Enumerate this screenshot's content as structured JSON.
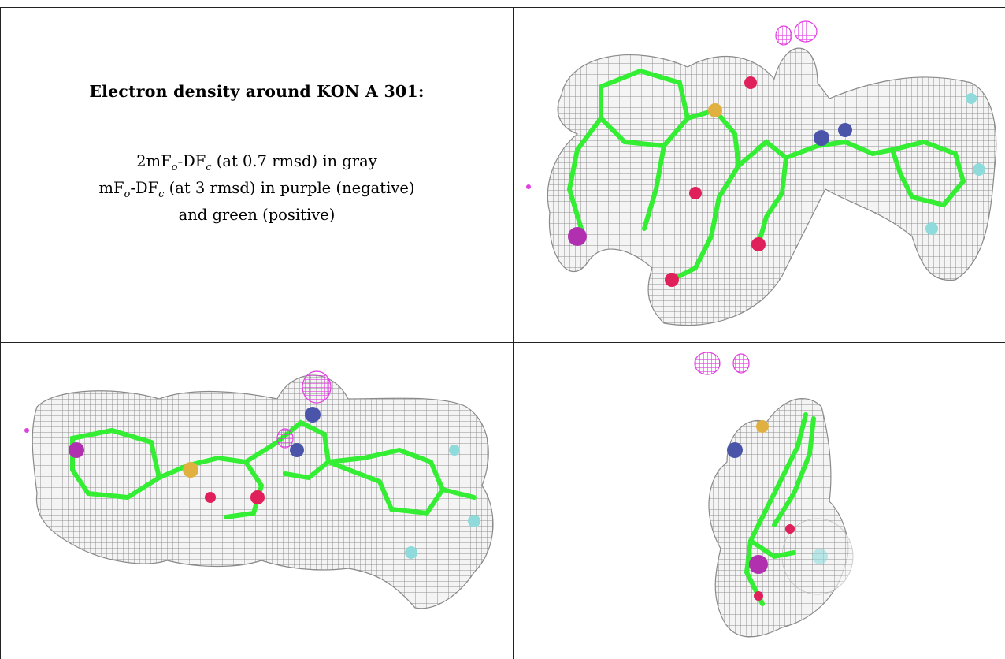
{
  "caption": {
    "title": "Electron density around KON A 301:",
    "line1": {
      "pre": "2mF",
      "sub1": "o",
      "mid": "-DF",
      "sub2": "c",
      "post": " (at 0.7 rmsd) in gray"
    },
    "line2": {
      "pre": "mF",
      "sub1": "o",
      "mid": "-DF",
      "sub2": "c",
      "post": " (at 3 rmsd) in purple (negative)"
    },
    "line3": "and green (positive)"
  },
  "colors": {
    "mesh_gray": "#8f8f8f",
    "carbon_green": "#33ee33",
    "nitrogen_blue": "#4a55aa",
    "oxygen_red": "#e0205a",
    "sulfur_gold": "#e0b040",
    "fluorine_cyan": "#8fdada",
    "chlorine_purple": "#b030b0",
    "negative_density_magenta": "#e040e0"
  },
  "panels": [
    {
      "view": "top-right",
      "content": "ligand density view 1"
    },
    {
      "view": "bottom-left",
      "content": "ligand density view 2"
    },
    {
      "view": "bottom-right",
      "content": "ligand density view 3"
    }
  ]
}
